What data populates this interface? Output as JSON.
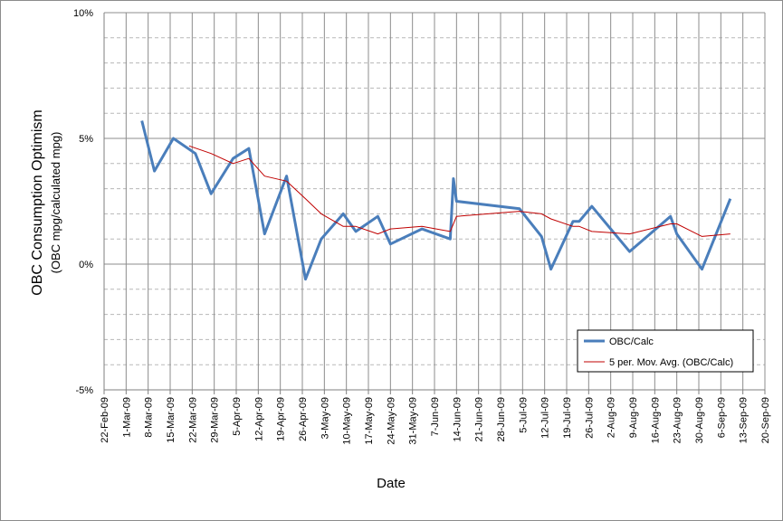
{
  "chart_data": {
    "type": "line",
    "ylabel": "OBC Consumption Optimism",
    "ylabel_sub": "(OBC mpg/calculated mpg)",
    "xlabel": "Date",
    "y_ticks": [
      "10%",
      "5%",
      "0%",
      "-5%"
    ],
    "ylim": [
      -5,
      10
    ],
    "x_ticks": [
      "22-Feb-09",
      "1-Mar-09",
      "8-Mar-09",
      "15-Mar-09",
      "22-Mar-09",
      "29-Mar-09",
      "5-Apr-09",
      "12-Apr-09",
      "19-Apr-09",
      "26-Apr-09",
      "3-May-09",
      "10-May-09",
      "17-May-09",
      "24-May-09",
      "31-May-09",
      "7-Jun-09",
      "14-Jun-09",
      "21-Jun-09",
      "28-Jun-09",
      "5-Jul-09",
      "12-Jul-09",
      "19-Jul-09",
      "26-Jul-09",
      "2-Aug-09",
      "9-Aug-09",
      "16-Aug-09",
      "23-Aug-09",
      "30-Aug-09",
      "6-Sep-09",
      "13-Sep-09",
      "20-Sep-09"
    ],
    "xlim": [
      "2009-02-22",
      "2009-09-20"
    ],
    "grid": true,
    "legend_position": "bottom-right",
    "series": [
      {
        "name": "OBC/Calc",
        "color": "#4a7ebb",
        "points": [
          {
            "x": "2009-03-06",
            "y": 5.7
          },
          {
            "x": "2009-03-10",
            "y": 3.7
          },
          {
            "x": "2009-03-16",
            "y": 5.0
          },
          {
            "x": "2009-03-23",
            "y": 4.4
          },
          {
            "x": "2009-03-28",
            "y": 2.8
          },
          {
            "x": "2009-04-04",
            "y": 4.2
          },
          {
            "x": "2009-04-09",
            "y": 4.6
          },
          {
            "x": "2009-04-14",
            "y": 1.2
          },
          {
            "x": "2009-04-21",
            "y": 3.5
          },
          {
            "x": "2009-04-27",
            "y": -0.6
          },
          {
            "x": "2009-05-02",
            "y": 1.0
          },
          {
            "x": "2009-05-09",
            "y": 2.0
          },
          {
            "x": "2009-05-13",
            "y": 1.3
          },
          {
            "x": "2009-05-20",
            "y": 1.9
          },
          {
            "x": "2009-05-24",
            "y": 0.8
          },
          {
            "x": "2009-06-03",
            "y": 1.4
          },
          {
            "x": "2009-06-12",
            "y": 1.0
          },
          {
            "x": "2009-06-13",
            "y": 3.4
          },
          {
            "x": "2009-06-14",
            "y": 2.5
          },
          {
            "x": "2009-07-04",
            "y": 2.2
          },
          {
            "x": "2009-07-11",
            "y": 1.1
          },
          {
            "x": "2009-07-14",
            "y": -0.2
          },
          {
            "x": "2009-07-21",
            "y": 1.7
          },
          {
            "x": "2009-07-23",
            "y": 1.7
          },
          {
            "x": "2009-07-27",
            "y": 2.3
          },
          {
            "x": "2009-08-08",
            "y": 0.5
          },
          {
            "x": "2009-08-21",
            "y": 1.9
          },
          {
            "x": "2009-08-23",
            "y": 1.2
          },
          {
            "x": "2009-08-31",
            "y": -0.2
          },
          {
            "x": "2009-09-09",
            "y": 2.6
          }
        ]
      },
      {
        "name": "5 per. Mov. Avg. (OBC/Calc)",
        "color": "#c00000",
        "points": [
          {
            "x": "2009-03-21",
            "y": 4.7
          },
          {
            "x": "2009-03-28",
            "y": 4.4
          },
          {
            "x": "2009-04-04",
            "y": 4.0
          },
          {
            "x": "2009-04-09",
            "y": 4.2
          },
          {
            "x": "2009-04-14",
            "y": 3.5
          },
          {
            "x": "2009-04-21",
            "y": 3.3
          },
          {
            "x": "2009-04-27",
            "y": 2.6
          },
          {
            "x": "2009-05-02",
            "y": 2.0
          },
          {
            "x": "2009-05-09",
            "y": 1.5
          },
          {
            "x": "2009-05-13",
            "y": 1.5
          },
          {
            "x": "2009-05-20",
            "y": 1.2
          },
          {
            "x": "2009-05-24",
            "y": 1.4
          },
          {
            "x": "2009-06-03",
            "y": 1.5
          },
          {
            "x": "2009-06-12",
            "y": 1.3
          },
          {
            "x": "2009-06-13",
            "y": 1.6
          },
          {
            "x": "2009-06-14",
            "y": 1.9
          },
          {
            "x": "2009-07-04",
            "y": 2.1
          },
          {
            "x": "2009-07-11",
            "y": 2.0
          },
          {
            "x": "2009-07-14",
            "y": 1.8
          },
          {
            "x": "2009-07-21",
            "y": 1.5
          },
          {
            "x": "2009-07-23",
            "y": 1.5
          },
          {
            "x": "2009-07-27",
            "y": 1.3
          },
          {
            "x": "2009-08-08",
            "y": 1.2
          },
          {
            "x": "2009-08-21",
            "y": 1.6
          },
          {
            "x": "2009-08-23",
            "y": 1.6
          },
          {
            "x": "2009-08-31",
            "y": 1.1
          },
          {
            "x": "2009-09-09",
            "y": 1.2
          }
        ]
      }
    ]
  }
}
